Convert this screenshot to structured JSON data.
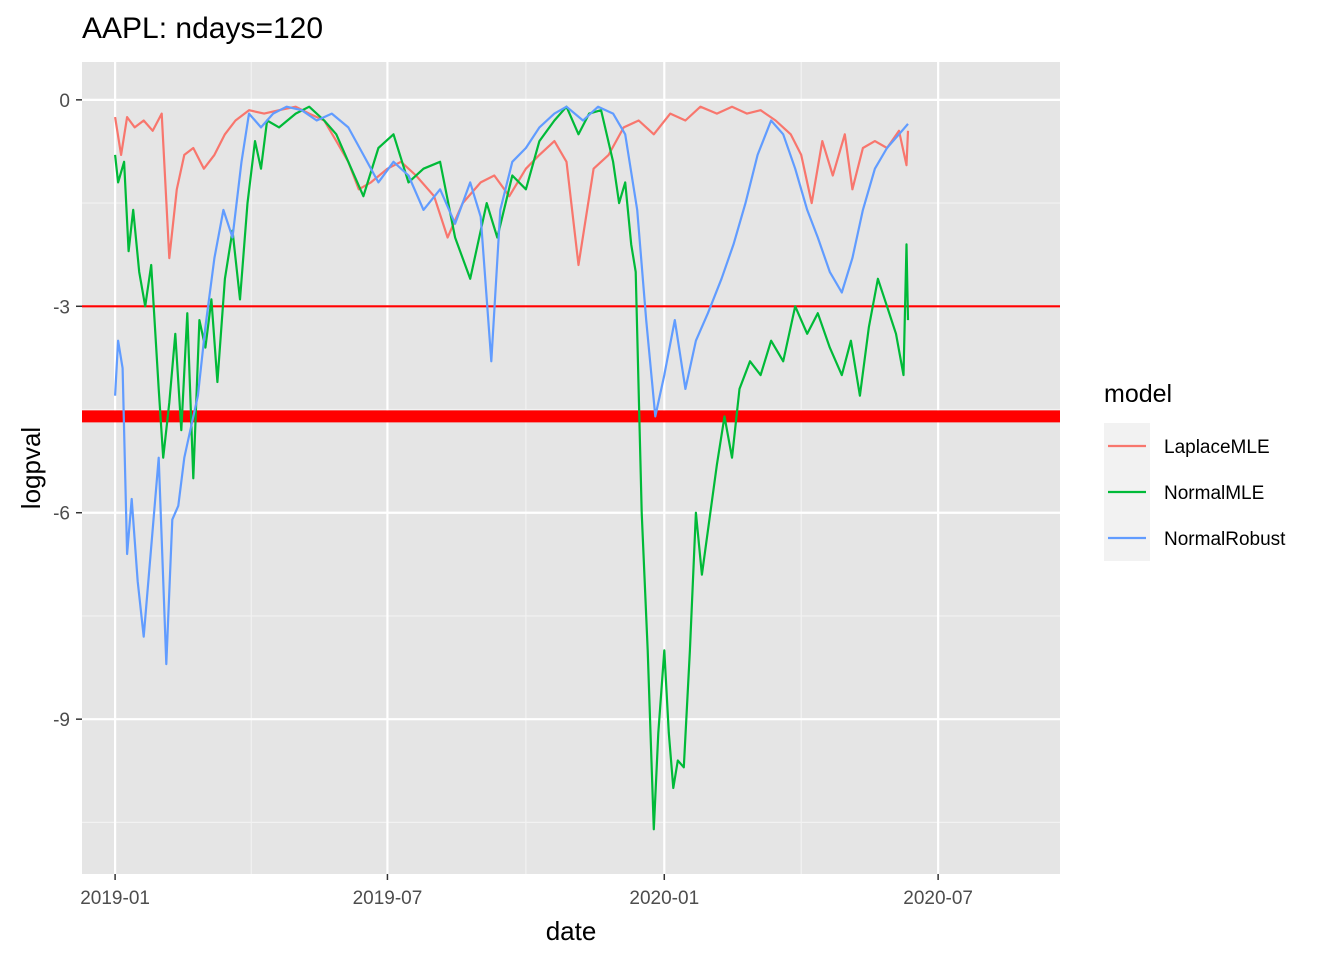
{
  "chart_data": {
    "type": "line",
    "title": "AAPL: ndays=120",
    "xlabel": "date",
    "ylabel": "logpval",
    "x_ticks": [
      "2019-01",
      "2019-07",
      "2020-01",
      "2020-07"
    ],
    "y_ticks": [
      0,
      -3,
      -6,
      -9
    ],
    "xlim": [
      "2018-12-10",
      "2020-09-20"
    ],
    "ylim": [
      -11.25,
      0.55
    ],
    "grid": true,
    "background": "#e5e5e5",
    "legend": {
      "title": "model",
      "position": "right",
      "entries": [
        "LaplaceMLE",
        "NormalMLE",
        "NormalRobust"
      ]
    },
    "hlines": [
      {
        "y": -3.0,
        "color": "#ff0000",
        "width": "thin"
      },
      {
        "y": -4.6,
        "color": "#ff0000",
        "width": "thick"
      }
    ],
    "series": [
      {
        "name": "LaplaceMLE",
        "color": "#f8766d",
        "points": [
          [
            "2019-01-01",
            -0.25
          ],
          [
            "2019-01-05",
            -0.8
          ],
          [
            "2019-01-09",
            -0.25
          ],
          [
            "2019-01-14",
            -0.4
          ],
          [
            "2019-01-20",
            -0.3
          ],
          [
            "2019-01-26",
            -0.45
          ],
          [
            "2019-02-01",
            -0.2
          ],
          [
            "2019-02-06",
            -2.3
          ],
          [
            "2019-02-11",
            -1.3
          ],
          [
            "2019-02-16",
            -0.8
          ],
          [
            "2019-02-22",
            -0.7
          ],
          [
            "2019-03-01",
            -1.0
          ],
          [
            "2019-03-08",
            -0.8
          ],
          [
            "2019-03-15",
            -0.5
          ],
          [
            "2019-03-22",
            -0.3
          ],
          [
            "2019-03-31",
            -0.15
          ],
          [
            "2019-04-10",
            -0.2
          ],
          [
            "2019-04-20",
            -0.15
          ],
          [
            "2019-05-01",
            -0.1
          ],
          [
            "2019-05-10",
            -0.2
          ],
          [
            "2019-05-20",
            -0.3
          ],
          [
            "2019-05-28",
            -0.6
          ],
          [
            "2019-06-05",
            -0.9
          ],
          [
            "2019-06-12",
            -1.3
          ],
          [
            "2019-06-20",
            -1.2
          ],
          [
            "2019-07-01",
            -1.0
          ],
          [
            "2019-07-10",
            -0.9
          ],
          [
            "2019-07-20",
            -1.1
          ],
          [
            "2019-08-01",
            -1.4
          ],
          [
            "2019-08-10",
            -2.0
          ],
          [
            "2019-08-20",
            -1.5
          ],
          [
            "2019-09-01",
            -1.2
          ],
          [
            "2019-09-10",
            -1.1
          ],
          [
            "2019-09-20",
            -1.4
          ],
          [
            "2019-10-01",
            -1.0
          ],
          [
            "2019-10-10",
            -0.8
          ],
          [
            "2019-10-20",
            -0.6
          ],
          [
            "2019-10-28",
            -0.9
          ],
          [
            "2019-11-05",
            -2.4
          ],
          [
            "2019-11-15",
            -1.0
          ],
          [
            "2019-11-25",
            -0.8
          ],
          [
            "2019-12-05",
            -0.4
          ],
          [
            "2019-12-15",
            -0.3
          ],
          [
            "2019-12-25",
            -0.5
          ],
          [
            "2020-01-05",
            -0.2
          ],
          [
            "2020-01-15",
            -0.3
          ],
          [
            "2020-01-25",
            -0.1
          ],
          [
            "2020-02-05",
            -0.2
          ],
          [
            "2020-02-15",
            -0.1
          ],
          [
            "2020-02-25",
            -0.2
          ],
          [
            "2020-03-05",
            -0.15
          ],
          [
            "2020-03-15",
            -0.3
          ],
          [
            "2020-03-25",
            -0.5
          ],
          [
            "2020-04-01",
            -0.8
          ],
          [
            "2020-04-08",
            -1.5
          ],
          [
            "2020-04-15",
            -0.6
          ],
          [
            "2020-04-22",
            -1.1
          ],
          [
            "2020-04-30",
            -0.5
          ],
          [
            "2020-05-05",
            -1.3
          ],
          [
            "2020-05-12",
            -0.7
          ],
          [
            "2020-05-20",
            -0.6
          ],
          [
            "2020-05-28",
            -0.7
          ],
          [
            "2020-06-05",
            -0.45
          ],
          [
            "2020-06-10",
            -0.95
          ],
          [
            "2020-06-11",
            -0.45
          ]
        ]
      },
      {
        "name": "NormalMLE",
        "color": "#00ba38",
        "points": [
          [
            "2019-01-01",
            -0.8
          ],
          [
            "2019-01-03",
            -1.2
          ],
          [
            "2019-01-07",
            -0.9
          ],
          [
            "2019-01-10",
            -2.2
          ],
          [
            "2019-01-13",
            -1.6
          ],
          [
            "2019-01-17",
            -2.5
          ],
          [
            "2019-01-21",
            -3.0
          ],
          [
            "2019-01-25",
            -2.4
          ],
          [
            "2019-01-30",
            -4.2
          ],
          [
            "2019-02-02",
            -5.2
          ],
          [
            "2019-02-06",
            -4.4
          ],
          [
            "2019-02-10",
            -3.4
          ],
          [
            "2019-02-14",
            -4.8
          ],
          [
            "2019-02-18",
            -3.1
          ],
          [
            "2019-02-22",
            -5.5
          ],
          [
            "2019-02-26",
            -3.2
          ],
          [
            "2019-03-02",
            -3.6
          ],
          [
            "2019-03-06",
            -2.9
          ],
          [
            "2019-03-10",
            -4.1
          ],
          [
            "2019-03-15",
            -2.6
          ],
          [
            "2019-03-20",
            -1.9
          ],
          [
            "2019-03-25",
            -2.9
          ],
          [
            "2019-03-30",
            -1.5
          ],
          [
            "2019-04-04",
            -0.6
          ],
          [
            "2019-04-08",
            -1.0
          ],
          [
            "2019-04-12",
            -0.3
          ],
          [
            "2019-04-20",
            -0.4
          ],
          [
            "2019-05-01",
            -0.2
          ],
          [
            "2019-05-10",
            -0.1
          ],
          [
            "2019-05-20",
            -0.3
          ],
          [
            "2019-05-28",
            -0.5
          ],
          [
            "2019-06-05",
            -0.9
          ],
          [
            "2019-06-15",
            -1.4
          ],
          [
            "2019-06-25",
            -0.7
          ],
          [
            "2019-07-05",
            -0.5
          ],
          [
            "2019-07-15",
            -1.2
          ],
          [
            "2019-07-25",
            -1.0
          ],
          [
            "2019-08-05",
            -0.9
          ],
          [
            "2019-08-15",
            -2.0
          ],
          [
            "2019-08-25",
            -2.6
          ],
          [
            "2019-09-05",
            -1.5
          ],
          [
            "2019-09-12",
            -2.0
          ],
          [
            "2019-09-22",
            -1.1
          ],
          [
            "2019-10-01",
            -1.3
          ],
          [
            "2019-10-10",
            -0.6
          ],
          [
            "2019-10-20",
            -0.3
          ],
          [
            "2019-10-28",
            -0.1
          ],
          [
            "2019-11-05",
            -0.5
          ],
          [
            "2019-11-12",
            -0.2
          ],
          [
            "2019-11-20",
            -0.15
          ],
          [
            "2019-11-28",
            -0.9
          ],
          [
            "2019-12-02",
            -1.5
          ],
          [
            "2019-12-06",
            -1.2
          ],
          [
            "2019-12-10",
            -2.1
          ],
          [
            "2019-12-13",
            -2.5
          ],
          [
            "2019-12-17",
            -6.0
          ],
          [
            "2019-12-21",
            -8.0
          ],
          [
            "2019-12-25",
            -10.6
          ],
          [
            "2019-12-28",
            -9.2
          ],
          [
            "2020-01-01",
            -8.0
          ],
          [
            "2020-01-04",
            -9.2
          ],
          [
            "2020-01-07",
            -10.0
          ],
          [
            "2020-01-10",
            -9.6
          ],
          [
            "2020-01-14",
            -9.7
          ],
          [
            "2020-01-18",
            -8.0
          ],
          [
            "2020-01-22",
            -6.0
          ],
          [
            "2020-01-26",
            -6.9
          ],
          [
            "2020-01-31",
            -6.1
          ],
          [
            "2020-02-05",
            -5.3
          ],
          [
            "2020-02-10",
            -4.6
          ],
          [
            "2020-02-15",
            -5.2
          ],
          [
            "2020-02-20",
            -4.2
          ],
          [
            "2020-02-27",
            -3.8
          ],
          [
            "2020-03-05",
            -4.0
          ],
          [
            "2020-03-12",
            -3.5
          ],
          [
            "2020-03-20",
            -3.8
          ],
          [
            "2020-03-28",
            -3.0
          ],
          [
            "2020-04-05",
            -3.4
          ],
          [
            "2020-04-12",
            -3.1
          ],
          [
            "2020-04-20",
            -3.6
          ],
          [
            "2020-04-28",
            -4.0
          ],
          [
            "2020-05-04",
            -3.5
          ],
          [
            "2020-05-10",
            -4.3
          ],
          [
            "2020-05-16",
            -3.3
          ],
          [
            "2020-05-22",
            -2.6
          ],
          [
            "2020-05-28",
            -3.0
          ],
          [
            "2020-06-03",
            -3.4
          ],
          [
            "2020-06-08",
            -4.0
          ],
          [
            "2020-06-10",
            -2.1
          ],
          [
            "2020-06-11",
            -3.2
          ]
        ]
      },
      {
        "name": "NormalRobust",
        "color": "#619cff",
        "points": [
          [
            "2019-01-01",
            -4.3
          ],
          [
            "2019-01-03",
            -3.5
          ],
          [
            "2019-01-06",
            -3.9
          ],
          [
            "2019-01-09",
            -6.6
          ],
          [
            "2019-01-12",
            -5.8
          ],
          [
            "2019-01-16",
            -7.0
          ],
          [
            "2019-01-20",
            -7.8
          ],
          [
            "2019-01-25",
            -6.5
          ],
          [
            "2019-01-30",
            -5.2
          ],
          [
            "2019-02-04",
            -8.2
          ],
          [
            "2019-02-08",
            -6.1
          ],
          [
            "2019-02-12",
            -5.9
          ],
          [
            "2019-02-16",
            -5.2
          ],
          [
            "2019-02-20",
            -4.8
          ],
          [
            "2019-02-25",
            -4.3
          ],
          [
            "2019-03-02",
            -3.3
          ],
          [
            "2019-03-08",
            -2.3
          ],
          [
            "2019-03-14",
            -1.6
          ],
          [
            "2019-03-20",
            -2.0
          ],
          [
            "2019-03-26",
            -0.9
          ],
          [
            "2019-03-31",
            -0.2
          ],
          [
            "2019-04-08",
            -0.4
          ],
          [
            "2019-04-16",
            -0.2
          ],
          [
            "2019-04-25",
            -0.1
          ],
          [
            "2019-05-05",
            -0.15
          ],
          [
            "2019-05-15",
            -0.3
          ],
          [
            "2019-05-25",
            -0.2
          ],
          [
            "2019-06-05",
            -0.4
          ],
          [
            "2019-06-15",
            -0.8
          ],
          [
            "2019-06-25",
            -1.2
          ],
          [
            "2019-07-05",
            -0.9
          ],
          [
            "2019-07-15",
            -1.1
          ],
          [
            "2019-07-25",
            -1.6
          ],
          [
            "2019-08-05",
            -1.3
          ],
          [
            "2019-08-15",
            -1.8
          ],
          [
            "2019-08-25",
            -1.2
          ],
          [
            "2019-09-01",
            -1.7
          ],
          [
            "2019-09-08",
            -3.8
          ],
          [
            "2019-09-14",
            -1.6
          ],
          [
            "2019-09-22",
            -0.9
          ],
          [
            "2019-10-01",
            -0.7
          ],
          [
            "2019-10-10",
            -0.4
          ],
          [
            "2019-10-20",
            -0.2
          ],
          [
            "2019-10-28",
            -0.1
          ],
          [
            "2019-11-08",
            -0.3
          ],
          [
            "2019-11-18",
            -0.1
          ],
          [
            "2019-11-28",
            -0.2
          ],
          [
            "2019-12-06",
            -0.5
          ],
          [
            "2019-12-14",
            -1.6
          ],
          [
            "2019-12-20",
            -3.2
          ],
          [
            "2019-12-26",
            -4.6
          ],
          [
            "2020-01-01",
            -4.0
          ],
          [
            "2020-01-08",
            -3.2
          ],
          [
            "2020-01-15",
            -4.2
          ],
          [
            "2020-01-22",
            -3.5
          ],
          [
            "2020-01-30",
            -3.1
          ],
          [
            "2020-02-08",
            -2.6
          ],
          [
            "2020-02-16",
            -2.1
          ],
          [
            "2020-02-24",
            -1.5
          ],
          [
            "2020-03-03",
            -0.8
          ],
          [
            "2020-03-12",
            -0.3
          ],
          [
            "2020-03-20",
            -0.5
          ],
          [
            "2020-03-28",
            -1.0
          ],
          [
            "2020-04-05",
            -1.6
          ],
          [
            "2020-04-12",
            -2.0
          ],
          [
            "2020-04-20",
            -2.5
          ],
          [
            "2020-04-28",
            -2.8
          ],
          [
            "2020-05-05",
            -2.3
          ],
          [
            "2020-05-12",
            -1.6
          ],
          [
            "2020-05-20",
            -1.0
          ],
          [
            "2020-05-28",
            -0.7
          ],
          [
            "2020-06-05",
            -0.5
          ],
          [
            "2020-06-11",
            -0.35
          ]
        ]
      }
    ]
  }
}
